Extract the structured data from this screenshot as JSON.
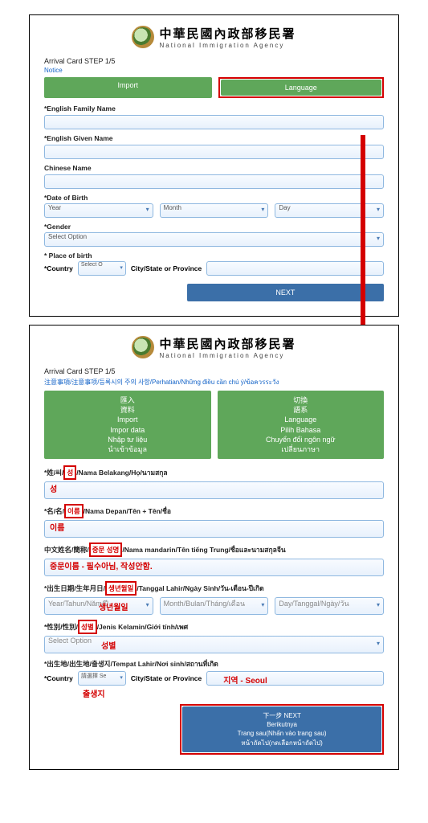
{
  "header": {
    "title_cn": "中華民國內政部移民署",
    "title_en": "National Immigration Agency"
  },
  "top": {
    "step": "Arrival Card STEP 1/5",
    "notice": "Notice",
    "import_btn": "Import",
    "language_btn": "Language",
    "fields": {
      "family": "*English Family Name",
      "given": "*English Given Name",
      "chinese": "Chinese Name",
      "dob": "*Date of Birth",
      "year": "Year",
      "month": "Month",
      "day": "Day",
      "gender": "*Gender",
      "gender_sel": "Select Option",
      "pob": "* Place of birth",
      "country": "*Country",
      "country_sel": "Select O",
      "city": "City/State or Province",
      "next": "NEXT"
    }
  },
  "bottom": {
    "step": "Arrival Card STEP 1/5",
    "notice": "注意事項/注意事项/등록시의 주의 사항/Perhatian/Những điều cần chú ý/ข้อควรระวัง",
    "import_lines": [
      "匯入",
      "資料",
      "Import",
      "Impor data",
      "Nhập tư liệu",
      "นำเข้าข้อมูล"
    ],
    "language_lines": [
      "切換",
      "語系",
      "Language",
      "Pilih Bahasa",
      "Chuyển đổi ngôn ngữ",
      "เปลี่ยนภาษา"
    ],
    "fields": {
      "family_label": "*姓/씨/성/Nama Belakang/Họ/นามสกุล",
      "family_anno_box": "성",
      "family_val": "성",
      "given_label": "*名/名/이름/Nama Depan/Tên + Tên/ชื่อ",
      "given_anno_box": "이름",
      "given_val": "이름",
      "chinese_label": "中文姓名/簡称/중문 성명/Nama mandarin/Tên tiếng Trung/ชื่อและนามสกุลจีน",
      "chinese_anno_box": "중문 성명",
      "chinese_val": "중문이름 - 필수아님, 작성안함.",
      "dob_label": "*出生日期/生年月日/생년월일/Tanggal Lahir/Ngày Sinh/วัน-เดือน-ปีเกิด",
      "dob_anno_box": "생년월일",
      "dob_year": "Year/Tahun/Năm/ปี",
      "dob_year_anno": "생년월일",
      "dob_month": "Month/Bulan/Tháng/เดือน",
      "dob_day": "Day/Tanggal/Ngày/วัน",
      "gender_label": "*性別/性別/성별/Jenis Kelamin/Giới tính/เพศ",
      "gender_anno_box": "성별",
      "gender_sel": "Select Option",
      "gender_sel_anno": "성별",
      "pob_label": "*出生地/出生地/출생지/Tempat Lahir/Nơi sinh/สถานที่เกิด",
      "country": "*Country",
      "country_sel": "請選擇 Se",
      "country_anno": "출생지",
      "city": "City/State or Province",
      "prov_anno": "지역 - Seoul",
      "next_lines": [
        "下一步 NEXT",
        "Berikutnya",
        "Trang sau(Nhấn vào trang sau)",
        "หน้าถัดไป(กดเลือกหน้าถัดไป)"
      ]
    }
  },
  "colors": {
    "green": "#5fa75a",
    "blue_btn": "#3b6fa8",
    "link_blue": "#1464c8",
    "red": "#d40000",
    "border_blue": "#8fb8e0"
  }
}
